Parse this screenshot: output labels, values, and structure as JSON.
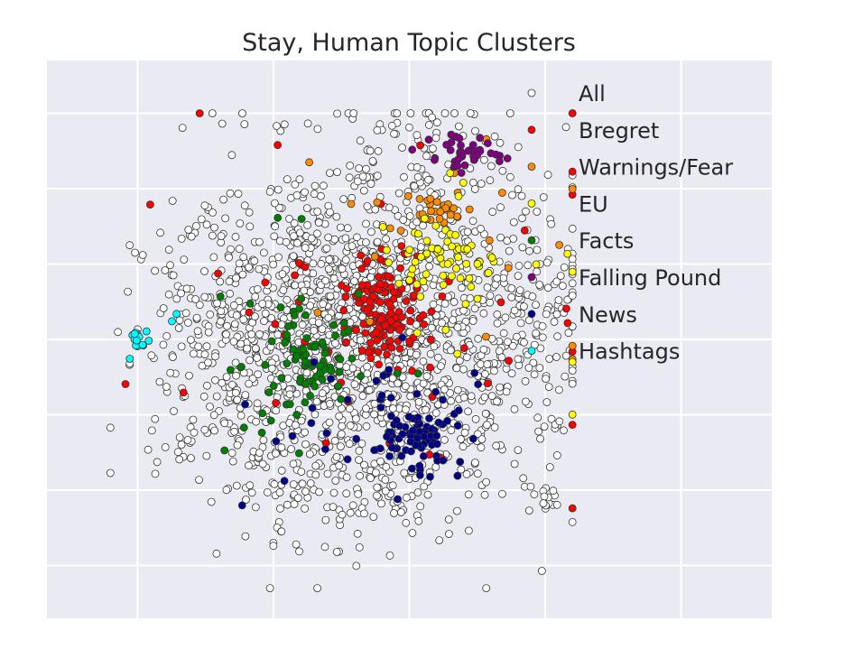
{
  "chart_data": {
    "type": "scatter",
    "title": "Stay, Human Topic Clusters",
    "xlabel": "",
    "ylabel": "",
    "x_tick_labels": [],
    "y_tick_labels": [],
    "xlim": [
      -40,
      40
    ],
    "ylim": [
      -37,
      37
    ],
    "grid": true,
    "legend": "top-right",
    "background": "#eaeaf2",
    "series": [
      {
        "name": "All",
        "color": "#ffffff",
        "clusters": [
          {
            "cx": -7,
            "cy": 1,
            "sx": 9,
            "sy": 11,
            "n": 1500
          },
          {
            "cx": -22,
            "cy": -4,
            "sx": 4,
            "sy": 8,
            "n": 90
          },
          {
            "cx": 8,
            "cy": -6,
            "sx": 6,
            "sy": 8,
            "n": 160
          },
          {
            "cx": 15,
            "cy": 5,
            "sx": 3,
            "sy": 5,
            "n": 70
          },
          {
            "cx": -4,
            "cy": -21,
            "sx": 7,
            "sy": 3,
            "n": 60
          },
          {
            "cx": 15,
            "cy": -21,
            "sx": 1,
            "sy": 1,
            "n": 18
          },
          {
            "cx": 5,
            "cy": 22,
            "sx": 6,
            "sy": 5,
            "n": 70
          }
        ]
      },
      {
        "name": "Bregret",
        "color": "#ff0000",
        "clusters": [
          {
            "cx": -3,
            "cy": 4,
            "sx": 2,
            "sy": 3.5,
            "n": 130
          },
          {
            "cx": 2,
            "cy": 5,
            "sx": 14,
            "sy": 12,
            "n": 55
          }
        ]
      },
      {
        "name": "Warnings/Fear",
        "color": "#ff8c00",
        "clusters": [
          {
            "cx": 3,
            "cy": 18,
            "sx": 1.5,
            "sy": 1.5,
            "n": 28
          },
          {
            "cx": 8,
            "cy": 12,
            "sx": 9,
            "sy": 8,
            "n": 18
          }
        ]
      },
      {
        "name": "EU",
        "color": "#ffff00",
        "clusters": [
          {
            "cx": 4,
            "cy": 10,
            "sx": 3,
            "sy": 2,
            "n": 60
          },
          {
            "cx": 8,
            "cy": 8,
            "sx": 8,
            "sy": 10,
            "n": 14
          }
        ]
      },
      {
        "name": "Facts",
        "color": "#008000",
        "clusters": [
          {
            "cx": -11,
            "cy": -3,
            "sx": 2.5,
            "sy": 3,
            "n": 60
          },
          {
            "cx": -13,
            "cy": -2,
            "sx": 5,
            "sy": 7,
            "n": 28
          }
        ]
      },
      {
        "name": "Falling Pound",
        "color": "#800080",
        "clusters": [
          {
            "cx": 6,
            "cy": 25,
            "sx": 2,
            "sy": 1,
            "n": 40
          }
        ]
      },
      {
        "name": "News",
        "color": "#00008b",
        "clusters": [
          {
            "cx": 0,
            "cy": -13,
            "sx": 2.5,
            "sy": 2,
            "n": 75
          },
          {
            "cx": -3,
            "cy": -11,
            "sx": 7,
            "sy": 6,
            "n": 28
          }
        ]
      },
      {
        "name": "Hashtags",
        "color": "#00ffff",
        "clusters": [
          {
            "cx": -30,
            "cy": 0,
            "sx": 0.5,
            "sy": 1,
            "n": 14
          },
          {
            "cx": -26,
            "cy": 2,
            "sx": 0.5,
            "sy": 0.5,
            "n": 2
          }
        ]
      }
    ]
  }
}
